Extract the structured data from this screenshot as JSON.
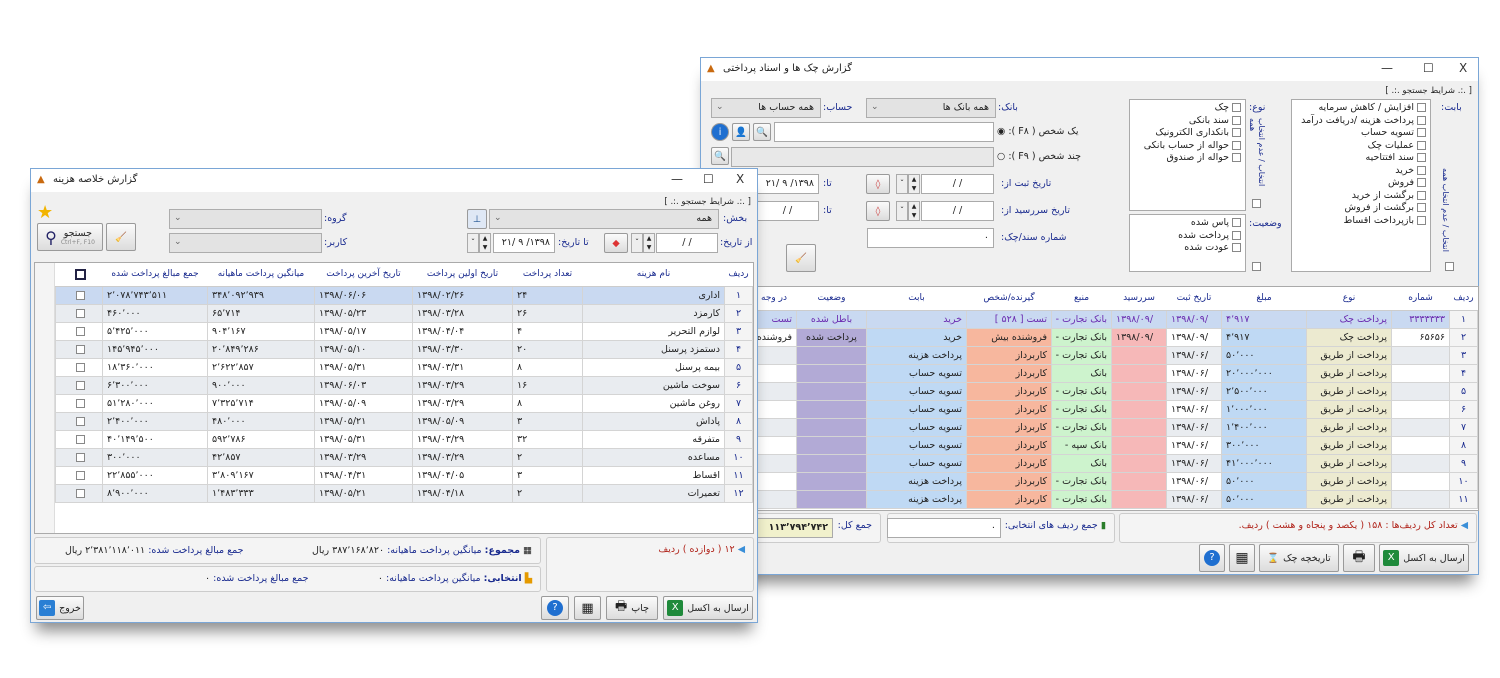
{
  "colors": {
    "accent": "#1a2b8f",
    "selected_row": "#c9d9f1",
    "col_type": "#ecead0",
    "col_amount": "#bfd9f4",
    "col_due": "#f6b8b8",
    "col_source": "#cdf3cd",
    "col_payee": "#f7b79e",
    "col_for": "#bfd9f4",
    "col_status": "#b2aad6"
  },
  "checks_window": {
    "title": "گزارش چک ها و اسناد پرداختی",
    "controls": {
      "minimize": "—",
      "maximize": "☐",
      "close": "X"
    },
    "search_caption": "[ .:. شرایط جستجو .:. ]",
    "bank_label": "بانک:",
    "bank_value": "همه بانک ها",
    "account_label": "حساب:",
    "account_value": "همه حساب ها",
    "type_label": "نوع:",
    "types": [
      "چک",
      "سند بانکی",
      "بانکداری الکترونیک",
      "حواله از حساب بانکی",
      "حواله از صندوق"
    ],
    "for_label": "بابت:",
    "for_items": [
      "افزایش / کاهش سرمایه",
      "پرداخت هزینه /دریافت درآمد",
      "تسویه حساب",
      "عملیات چک",
      "سند افتتاحیه",
      "خرید",
      "فروش",
      "برگشت از خرید",
      "برگشت از فروش",
      "بازپرداخت اقساط"
    ],
    "status_label": "وضعیت:",
    "statuses": [
      "پاس شده",
      "پرداخت شده",
      "عودت شده"
    ],
    "select_all": "انتخاب / عدم انتخاب همه",
    "one_person": "یک شخص ( F۸ ):",
    "multi_person": "چند شخص ( F۹ ):",
    "reg_date_from": "تاریخ ثبت از:",
    "due_date_from": "تاریخ سررسید از:",
    "to": "تا:",
    "empty_date": "/   /",
    "to_date_value": "۱۳۹۸/ ۹ /۲۱",
    "doc_number_label": "شماره سند/چک:",
    "doc_number_value": "۰",
    "columns": [
      "ردیف",
      "شماره",
      "نوع",
      "مبلغ",
      "تاریخ ثبت",
      "سررسید",
      "منبع",
      "گیرنده/شخص",
      "بابت",
      "وضعیت",
      "در وجه"
    ],
    "rows": [
      [
        "۱",
        "۳۳۳۳۳۳۳",
        "پرداخت چک",
        "۴٬۹۱۷",
        "/۱۳۹۸/۰۹",
        "/۱۳۹۸/۰۹",
        "بانک تجارت -",
        "تست [ ۵۲۸ ]",
        "خرید",
        "باطل شده",
        "تست"
      ],
      [
        "۲",
        "۶۵۶۵۶",
        "پرداخت چک",
        "۴٬۹۱۷",
        "/۱۳۹۸/۰۹",
        "/۱۳۹۸/۰۹",
        "بانک تجارت -",
        "فروشنده بیش",
        "خرید",
        "پرداخت شده",
        "فروشنده"
      ],
      [
        "۳",
        "",
        "پرداخت از طریق",
        "۵۰٬۰۰۰",
        "/۱۳۹۸/۰۶",
        "",
        "بانک تجارت -",
        "کاربرداز",
        "پرداخت هزینه",
        "",
        ""
      ],
      [
        "۴",
        "",
        "پرداخت از طریق",
        "۲۰٬۰۰۰٬۰۰۰",
        "/۱۳۹۸/۰۶",
        "",
        "بانک",
        "کاربرداز",
        "تسویه حساب",
        "",
        ""
      ],
      [
        "۵",
        "",
        "پرداخت از طریق",
        "۲٬۵۰۰٬۰۰۰",
        "/۱۳۹۸/۰۶",
        "",
        "بانک تجارت -",
        "کاربرداز",
        "تسویه حساب",
        "",
        ""
      ],
      [
        "۶",
        "",
        "پرداخت از طریق",
        "۱٬۰۰۰٬۰۰۰",
        "/۱۳۹۸/۰۶",
        "",
        "بانک تجارت -",
        "کاربرداز",
        "تسویه حساب",
        "",
        ""
      ],
      [
        "۷",
        "",
        "پرداخت از طریق",
        "۱٬۴۰۰٬۰۰۰",
        "/۱۳۹۸/۰۶",
        "",
        "بانک تجارت -",
        "کاربرداز",
        "تسویه حساب",
        "",
        ""
      ],
      [
        "۸",
        "",
        "پرداخت از طریق",
        "۳۰۰٬۰۰۰",
        "/۱۳۹۸/۰۶",
        "",
        "بانک سپه -",
        "کاربرداز",
        "تسویه حساب",
        "",
        ""
      ],
      [
        "۹",
        "",
        "پرداخت از طریق",
        "۴۱٬۰۰۰٬۰۰۰",
        "/۱۳۹۸/۰۶",
        "",
        "بانک",
        "کاربرداز",
        "تسویه حساب",
        "",
        ""
      ],
      [
        "۱۰",
        "",
        "پرداخت از طریق",
        "۵۰٬۰۰۰",
        "/۱۳۹۸/۰۶",
        "",
        "بانک تجارت -",
        "کاربرداز",
        "پرداخت هزینه",
        "",
        ""
      ],
      [
        "۱۱",
        "",
        "پرداخت از طریق",
        "۵۰٬۰۰۰",
        "/۱۳۹۸/۰۶",
        "",
        "بانک تجارت -",
        "کاربرداز",
        "پرداخت هزینه",
        "",
        ""
      ]
    ],
    "row_count_text": "تعداد کل ردیف‌ها : ۱۵۸ ( یکصد و پنجاه و هشت ) ردیف.",
    "selected_sum_label": "جمع ردیف های انتخابی:",
    "selected_sum_value": "۰",
    "total_label": "جمع کل:",
    "total_value": "۱۱۳٬۷۹۴٬۷۴۲",
    "excel_button": "ارسال به اکسل",
    "history_button": "تاریخچه چک"
  },
  "expense_window": {
    "title": "گزارش خلاصه هزینه",
    "controls": {
      "minimize": "—",
      "maximize": "☐",
      "close": "X"
    },
    "search_caption": "[ .:. شرایط جستجو .:. ]",
    "section_label": "بخش:",
    "section_value": "همه",
    "group_label": "گروه:",
    "user_label": "کاربر:",
    "from_date_label": "از تاریخ:",
    "from_date_value": "/   /",
    "to_date_label": "تا تاریخ:",
    "to_date_value": "۱۳۹۸/ ۹ /۲۱",
    "search_button": "جستجو",
    "search_shortcut": "Ctrl+F, F10",
    "columns": [
      "ردیف",
      "نام هزینه",
      "تعداد پرداخت",
      "تاریخ اولین پرداخت",
      "تاریخ آخرین پرداخت",
      "میانگین پرداخت ماهیانه",
      "جمع مبالغ پرداخت شده"
    ],
    "rows": [
      [
        "۱",
        "اداری",
        "۲۴",
        "۱۳۹۸/۰۲/۲۶",
        "۱۳۹۸/۰۶/۰۶",
        "۳۴۸٬۰۹۲٬۹۳۹",
        "۲٬۰۷۸٬۷۴۳٬۵۱۱"
      ],
      [
        "۲",
        "کارمزد",
        "۲۶",
        "۱۳۹۸/۰۳/۲۸",
        "۱۳۹۸/۰۵/۲۳",
        "۶۵٬۷۱۴",
        "۴۶۰٬۰۰۰"
      ],
      [
        "۳",
        "لوازم التحریر",
        "۴",
        "۱۳۹۸/۰۴/۰۴",
        "۱۳۹۸/۰۵/۱۷",
        "۹۰۴٬۱۶۷",
        "۵٬۴۲۵٬۰۰۰"
      ],
      [
        "۴",
        "دستمزد پرسنل",
        "۲۰",
        "۱۳۹۸/۰۳/۳۰",
        "۱۳۹۸/۰۵/۱۰",
        "۲۰٬۸۴۹٬۲۸۶",
        "۱۴۵٬۹۴۵٬۰۰۰"
      ],
      [
        "۵",
        "بیمه پرسنل",
        "۸",
        "۱۳۹۸/۰۳/۳۱",
        "۱۳۹۸/۰۵/۳۱",
        "۲٬۶۲۲٬۸۵۷",
        "۱۸٬۳۶۰٬۰۰۰"
      ],
      [
        "۶",
        "سوخت ماشین",
        "۱۶",
        "۱۳۹۸/۰۳/۲۹",
        "۱۳۹۸/۰۶/۰۳",
        "۹۰۰٬۰۰۰",
        "۶٬۳۰۰٬۰۰۰"
      ],
      [
        "۷",
        "روغن ماشین",
        "۸",
        "۱۳۹۸/۰۳/۲۹",
        "۱۳۹۸/۰۵/۰۹",
        "۷٬۳۲۵٬۷۱۴",
        "۵۱٬۲۸۰٬۰۰۰"
      ],
      [
        "۸",
        "پاداش",
        "۳",
        "۱۳۹۸/۰۵/۰۹",
        "۱۳۹۸/۰۵/۲۱",
        "۴۸۰٬۰۰۰",
        "۲٬۴۰۰٬۰۰۰"
      ],
      [
        "۹",
        "متفرقه",
        "۳۲",
        "۱۳۹۸/۰۳/۲۹",
        "۱۳۹۸/۰۵/۳۱",
        "۵۹۲٬۷۸۶",
        "۴۰٬۱۴۹٬۵۰۰"
      ],
      [
        "۱۰",
        "مساعده",
        "۲",
        "۱۳۹۸/۰۳/۲۹",
        "۱۳۹۸/۰۳/۲۹",
        "۴۲٬۸۵۷",
        "۳۰۰٬۰۰۰"
      ],
      [
        "۱۱",
        "اقساط",
        "۳",
        "۱۳۹۸/۰۴/۰۵",
        "۱۳۹۸/۰۴/۳۱",
        "۳٬۸۰۹٬۱۶۷",
        "۲۲٬۸۵۵٬۰۰۰"
      ],
      [
        "۱۲",
        "تعمیرات",
        "۲",
        "۱۳۹۸/۰۴/۱۸",
        "۱۳۹۸/۰۵/۲۱",
        "۱٬۴۸۳٬۳۳۳",
        "۸٬۹۰۰٬۰۰۰"
      ]
    ],
    "row_count_text": "۱۲ ( دوازده ) ردیف",
    "total_label": "مجموع:",
    "avg_label": "میانگین پرداخت ماهیانه:",
    "total_avg_value": "۳۸۷٬۱۶۸٬۸۲۰ ریال",
    "sum_label": "جمع مبالغ پرداخت شده:",
    "total_sum_value": "۲٬۳۸۱٬۱۱۸٬۰۱۱ ریال",
    "selected_label": "انتخابی:",
    "selected_avg_value": "۰",
    "selected_sum_value": "۰",
    "excel_button": "ارسال به اکسل",
    "print_button": "چاپ",
    "exit_button": "خروج"
  }
}
